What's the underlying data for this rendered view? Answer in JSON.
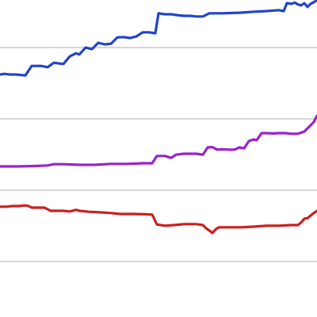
{
  "chart_data": {
    "type": "line",
    "title": "",
    "xlabel": "",
    "ylabel": "",
    "grid": true,
    "xlim": [
      0,
      100
    ],
    "ylim": [
      0,
      100
    ],
    "y_gridlines": [
      17.5,
      40,
      62.5,
      85
    ],
    "series": [
      {
        "color": "#2244cc",
        "points": [
          [
            0,
            76.5
          ],
          [
            1.5,
            76.7
          ],
          [
            3,
            76.5
          ],
          [
            5,
            76.5
          ],
          [
            8,
            76.2
          ],
          [
            10,
            79.2
          ],
          [
            13,
            79.2
          ],
          [
            15,
            78.8
          ],
          [
            17,
            80.2
          ],
          [
            20,
            79.8
          ],
          [
            22,
            82.2
          ],
          [
            24,
            83.2
          ],
          [
            25,
            82.8
          ],
          [
            27,
            85.0
          ],
          [
            29,
            84.5
          ],
          [
            31,
            86.5
          ],
          [
            33,
            86.0
          ],
          [
            35,
            86.2
          ],
          [
            37,
            88.2
          ],
          [
            39,
            88.3
          ],
          [
            41,
            88.0
          ],
          [
            43,
            88.5
          ],
          [
            45,
            89.8
          ],
          [
            47,
            89.8
          ],
          [
            49,
            89.5
          ],
          [
            50,
            95.8
          ],
          [
            52,
            95.5
          ],
          [
            54,
            95.5
          ],
          [
            56,
            95.2
          ],
          [
            58,
            95.0
          ],
          [
            60,
            95.0
          ],
          [
            62,
            94.8
          ],
          [
            64,
            94.8
          ],
          [
            66,
            95.8
          ],
          [
            70,
            95.8
          ],
          [
            76,
            96.0
          ],
          [
            80,
            96.3
          ],
          [
            84,
            96.5
          ],
          [
            88,
            96.8
          ],
          [
            89.5,
            96.5
          ],
          [
            90.5,
            99.0
          ],
          [
            92,
            98.8
          ],
          [
            93,
            99.2
          ],
          [
            94,
            98.6
          ],
          [
            95,
            98.3
          ],
          [
            96,
            99.0
          ],
          [
            97,
            97.8
          ],
          [
            98,
            98.8
          ],
          [
            99,
            99.3
          ],
          [
            100,
            100
          ]
        ]
      },
      {
        "color": "#9922cc",
        "points": [
          [
            0,
            47.5
          ],
          [
            5,
            47.5
          ],
          [
            10,
            47.6
          ],
          [
            15,
            47.8
          ],
          [
            17,
            48.2
          ],
          [
            20,
            48.2
          ],
          [
            25,
            48.0
          ],
          [
            30,
            48.0
          ],
          [
            35,
            48.3
          ],
          [
            40,
            48.3
          ],
          [
            45,
            48.5
          ],
          [
            48,
            48.5
          ],
          [
            49.5,
            50.8
          ],
          [
            52,
            50.8
          ],
          [
            54,
            50.2
          ],
          [
            55.5,
            51.2
          ],
          [
            58,
            51.5
          ],
          [
            62,
            51.5
          ],
          [
            64,
            51.2
          ],
          [
            65.5,
            53.5
          ],
          [
            67,
            53.6
          ],
          [
            68.5,
            52.8
          ],
          [
            70,
            52.9
          ],
          [
            72,
            52.8
          ],
          [
            74,
            52.8
          ],
          [
            75.5,
            53.5
          ],
          [
            77,
            53.2
          ],
          [
            78.5,
            55.5
          ],
          [
            80,
            56.0
          ],
          [
            81,
            55.8
          ],
          [
            82.5,
            58.0
          ],
          [
            84,
            58.0
          ],
          [
            86,
            57.9
          ],
          [
            88,
            58.0
          ],
          [
            90,
            58.0
          ],
          [
            92,
            57.8
          ],
          [
            94,
            57.8
          ],
          [
            96,
            58.5
          ],
          [
            97,
            59.5
          ],
          [
            98,
            60.5
          ],
          [
            99,
            61.5
          ],
          [
            100,
            63.5
          ]
        ]
      },
      {
        "color": "#cc1f1f",
        "points": [
          [
            0,
            34.8
          ],
          [
            2,
            34.8
          ],
          [
            4,
            35.0
          ],
          [
            6,
            35.0
          ],
          [
            8,
            35.2
          ],
          [
            9,
            35.0
          ],
          [
            10,
            34.5
          ],
          [
            12,
            34.5
          ],
          [
            14,
            34.5
          ],
          [
            15,
            34.0
          ],
          [
            16,
            33.5
          ],
          [
            18,
            33.5
          ],
          [
            20,
            33.5
          ],
          [
            22,
            33.3
          ],
          [
            24,
            33.8
          ],
          [
            25,
            33.5
          ],
          [
            28,
            33.2
          ],
          [
            32,
            33.0
          ],
          [
            35,
            32.8
          ],
          [
            38,
            32.5
          ],
          [
            42,
            32.5
          ],
          [
            46,
            32.4
          ],
          [
            48,
            32.3
          ],
          [
            49.5,
            29.2
          ],
          [
            52,
            28.8
          ],
          [
            55,
            29.0
          ],
          [
            58,
            29.3
          ],
          [
            62,
            29.3
          ],
          [
            64,
            29.0
          ],
          [
            65,
            28.0
          ],
          [
            66,
            27.3
          ],
          [
            67,
            26.5
          ],
          [
            68,
            27.6
          ],
          [
            69,
            28.3
          ],
          [
            72,
            28.3
          ],
          [
            76,
            28.3
          ],
          [
            80,
            28.5
          ],
          [
            84,
            28.8
          ],
          [
            88,
            28.8
          ],
          [
            92,
            29.0
          ],
          [
            94,
            29.0
          ],
          [
            95,
            29.8
          ],
          [
            96,
            31.0
          ],
          [
            97,
            31.2
          ],
          [
            98,
            32.0
          ],
          [
            99,
            32.8
          ],
          [
            100,
            33.5
          ]
        ]
      }
    ]
  }
}
